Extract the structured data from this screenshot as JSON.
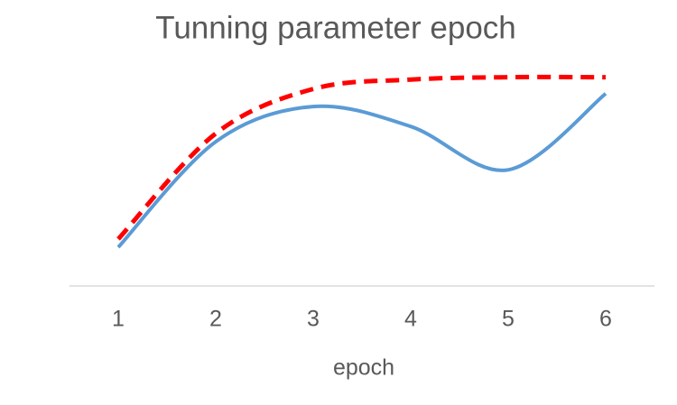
{
  "chart_data": {
    "type": "line",
    "title": "Tunning parameter epoch",
    "x_label": "epoch",
    "categories": [
      "1",
      "2",
      "3",
      "4",
      "5",
      "6"
    ],
    "series": [
      {
        "color": "#5b9bd5",
        "style": "solid",
        "values": [
          16.5,
          61.5,
          76.5,
          68,
          49.5,
          82
        ]
      },
      {
        "color": "#ff0000",
        "style": "dashed",
        "values": [
          20,
          65,
          84,
          88,
          89,
          89
        ]
      }
    ],
    "ylim": [
      0,
      100
    ],
    "smooth": true,
    "grid": false
  }
}
